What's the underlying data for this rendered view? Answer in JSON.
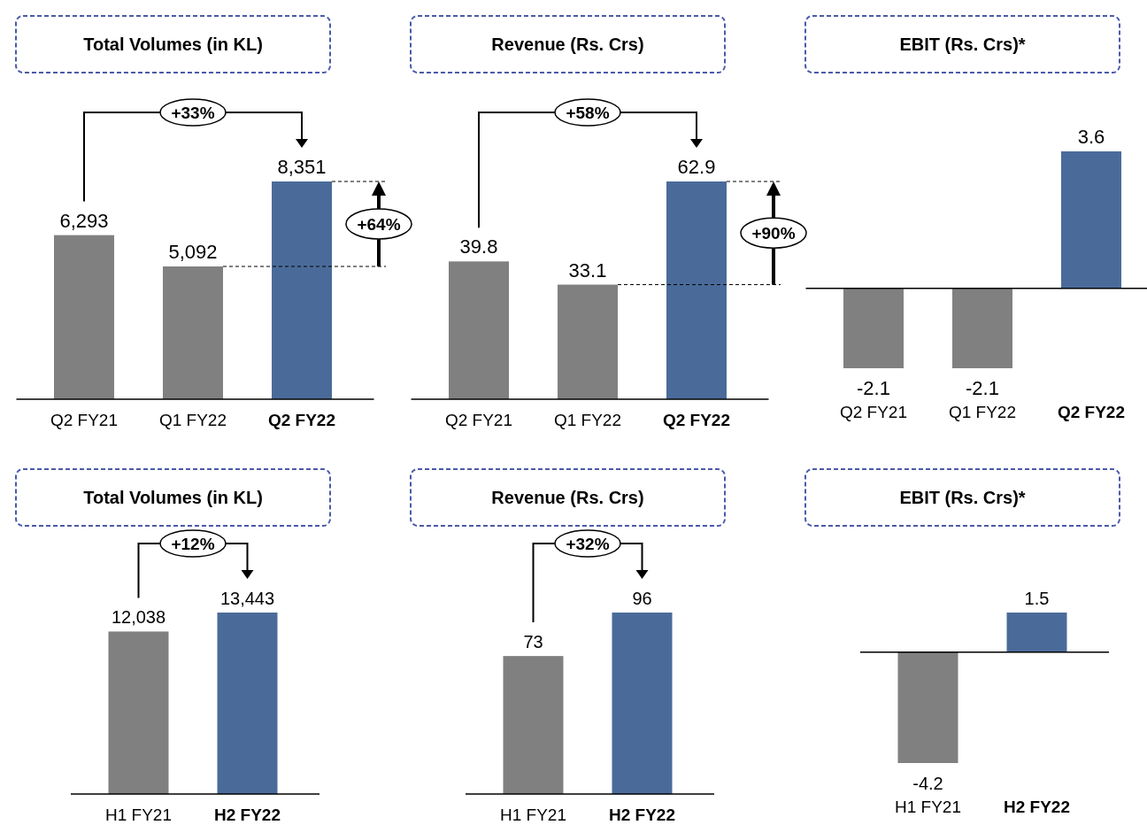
{
  "chart_data": [
    {
      "type": "bar",
      "title": "Total Volumes (in KL)",
      "categories": [
        "Q2 FY21",
        "Q1 FY22",
        "Q2 FY22"
      ],
      "values": [
        6293,
        5092,
        8351
      ],
      "colors": [
        "#808080",
        "#808080",
        "#4a6b9a"
      ],
      "data_labels": true,
      "value_labels": [
        "6,293",
        "5,092",
        "8,351"
      ],
      "annotations": [
        "+33%",
        "+64%"
      ]
    },
    {
      "type": "bar",
      "title": "Revenue (Rs. Crs)",
      "categories": [
        "Q2 FY21",
        "Q1 FY22",
        "Q2 FY22"
      ],
      "values": [
        39.8,
        33.1,
        62.9
      ],
      "colors": [
        "#808080",
        "#808080",
        "#4a6b9a"
      ],
      "data_labels": true,
      "annotations": [
        "+58%",
        "+90%"
      ]
    },
    {
      "type": "bar",
      "title": "EBIT (Rs. Crs)*",
      "categories": [
        "Q2 FY21",
        "Q1 FY22",
        "Q2 FY22"
      ],
      "values": [
        -2.1,
        -2.1,
        3.6
      ],
      "colors": [
        "#808080",
        "#808080",
        "#4a6b9a"
      ],
      "data_labels": true
    },
    {
      "type": "bar",
      "title": "Total Volumes (in KL)",
      "categories": [
        "H1 FY21",
        "H2 FY22"
      ],
      "values": [
        12038,
        13443
      ],
      "colors": [
        "#808080",
        "#4a6b9a"
      ],
      "data_labels": true,
      "value_labels": [
        "12,038",
        "13,443"
      ],
      "annotations": [
        "+12%"
      ]
    },
    {
      "type": "bar",
      "title": "Revenue (Rs. Crs)",
      "categories": [
        "H1 FY21",
        "H2 FY22"
      ],
      "values": [
        73,
        96
      ],
      "colors": [
        "#808080",
        "#4a6b9a"
      ],
      "data_labels": true,
      "annotations": [
        "+32%"
      ]
    },
    {
      "type": "bar",
      "title": "EBIT (Rs. Crs)*",
      "categories": [
        "H1 FY21",
        "H2 FY22"
      ],
      "values": [
        -4.2,
        1.5
      ],
      "colors": [
        "#808080",
        "#4a6b9a"
      ],
      "data_labels": true
    }
  ]
}
